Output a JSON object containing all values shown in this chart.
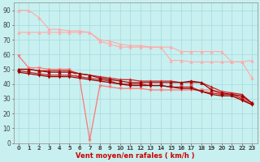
{
  "xlabel": "Vent moyen/en rafales ( km/h )",
  "x": [
    0,
    1,
    2,
    3,
    4,
    5,
    6,
    7,
    8,
    9,
    10,
    11,
    12,
    13,
    14,
    15,
    16,
    17,
    18,
    19,
    20,
    21,
    22,
    23
  ],
  "lines": [
    {
      "color": "#ffaaaa",
      "marker": "^",
      "markersize": 2.5,
      "lw": 0.8,
      "data": [
        90,
        90,
        85,
        77,
        77,
        76,
        76,
        75,
        69,
        67,
        65,
        65,
        65,
        65,
        65,
        65,
        62,
        62,
        62,
        62,
        62,
        55,
        55,
        44
      ]
    },
    {
      "color": "#ffaaaa",
      "marker": "^",
      "markersize": 2.5,
      "lw": 0.8,
      "data": [
        75,
        75,
        75,
        75,
        75,
        75,
        75,
        75,
        70,
        69,
        67,
        66,
        66,
        65,
        65,
        56,
        56,
        55,
        55,
        55,
        55,
        55,
        55,
        56
      ]
    },
    {
      "color": "#ff7777",
      "marker": "v",
      "markersize": 2.5,
      "lw": 0.9,
      "data": [
        59,
        51,
        51,
        50,
        50,
        50,
        44,
        2,
        39,
        38,
        37,
        37,
        37,
        36,
        36,
        36,
        36,
        36,
        36,
        36,
        33,
        33,
        31,
        27
      ]
    },
    {
      "color": "#cc2222",
      "marker": "^",
      "markersize": 2.5,
      "lw": 0.9,
      "data": [
        50,
        50,
        49,
        49,
        49,
        49,
        47,
        46,
        45,
        44,
        43,
        43,
        42,
        42,
        42,
        42,
        41,
        41,
        41,
        38,
        35,
        34,
        33,
        27
      ]
    },
    {
      "color": "#cc2222",
      "marker": "v",
      "markersize": 2.5,
      "lw": 0.9,
      "data": [
        49,
        48,
        47,
        46,
        46,
        46,
        45,
        44,
        43,
        42,
        40,
        40,
        40,
        39,
        39,
        38,
        38,
        38,
        35,
        34,
        33,
        33,
        30,
        26
      ]
    },
    {
      "color": "#990000",
      "marker": "^",
      "markersize": 2.5,
      "lw": 0.9,
      "data": [
        50,
        50,
        49,
        48,
        48,
        48,
        47,
        46,
        44,
        43,
        42,
        41,
        41,
        41,
        41,
        41,
        41,
        42,
        41,
        36,
        34,
        33,
        32,
        27
      ]
    },
    {
      "color": "#990000",
      "marker": "v",
      "markersize": 2.5,
      "lw": 0.9,
      "data": [
        48,
        47,
        46,
        45,
        45,
        45,
        44,
        43,
        42,
        41,
        40,
        39,
        39,
        39,
        39,
        38,
        37,
        37,
        35,
        33,
        32,
        32,
        29,
        26
      ]
    }
  ],
  "ylim": [
    0,
    95
  ],
  "xlim": [
    -0.5,
    23.5
  ],
  "yticks": [
    0,
    10,
    20,
    30,
    40,
    50,
    60,
    70,
    80,
    90
  ],
  "xticks": [
    0,
    1,
    2,
    3,
    4,
    5,
    6,
    7,
    8,
    9,
    10,
    11,
    12,
    13,
    14,
    15,
    16,
    17,
    18,
    19,
    20,
    21,
    22,
    23
  ],
  "bg_color": "#c8f0f0",
  "grid_color": "#aadddd"
}
